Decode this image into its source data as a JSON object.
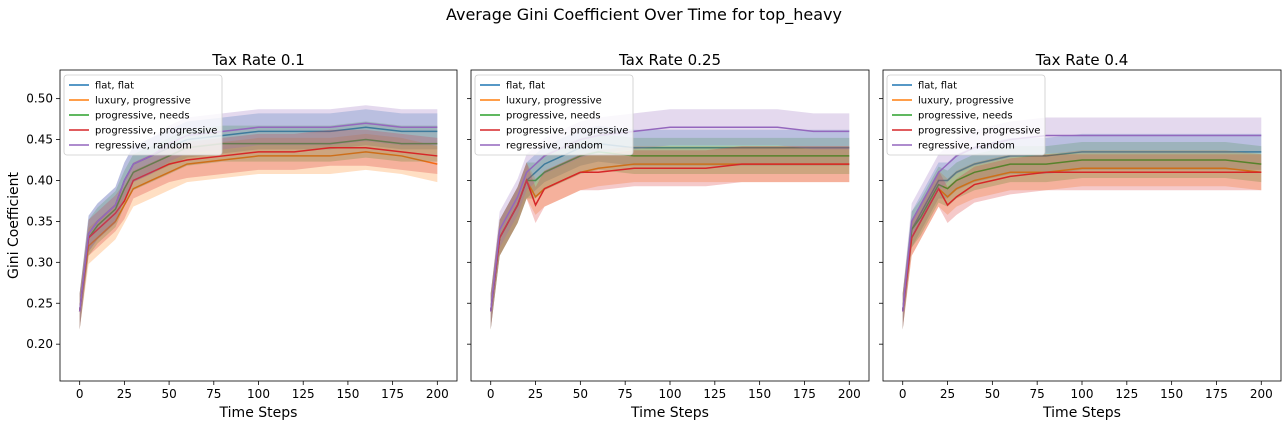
{
  "figure": {
    "suptitle": "Average Gini Coefficient Over Time for top_heavy"
  },
  "colors": {
    "flat, flat": "#1f77b4",
    "luxury, progressive": "#ff7f0e",
    "progressive, needs": "#2ca02c",
    "progressive, progressive": "#d62728",
    "regressive, random": "#9467bd"
  },
  "chart_data": [
    {
      "type": "line",
      "title": "Tax Rate 0.1",
      "xlabel": "Time Steps",
      "ylabel": "Gini Coefficient",
      "xlim": [
        -11,
        211
      ],
      "ylim": [
        0.155,
        0.535
      ],
      "xticks": [
        0,
        25,
        50,
        75,
        100,
        125,
        150,
        175,
        200
      ],
      "yticks": [
        0.2,
        0.25,
        0.3,
        0.35,
        0.4,
        0.45,
        0.5
      ],
      "grid": false,
      "legend": "upper-left",
      "shaded_band": "variability across runs",
      "x": [
        0,
        5,
        10,
        15,
        20,
        25,
        30,
        40,
        50,
        60,
        80,
        100,
        120,
        140,
        160,
        180,
        200
      ],
      "series": [
        {
          "name": "flat, flat",
          "values": [
            0.24,
            0.335,
            0.35,
            0.36,
            0.37,
            0.4,
            0.42,
            0.43,
            0.44,
            0.45,
            0.455,
            0.46,
            0.46,
            0.46,
            0.465,
            0.46,
            0.46
          ]
        },
        {
          "name": "luxury, progressive",
          "values": [
            0.24,
            0.32,
            0.33,
            0.34,
            0.35,
            0.37,
            0.39,
            0.4,
            0.41,
            0.42,
            0.425,
            0.43,
            0.43,
            0.43,
            0.435,
            0.43,
            0.42
          ]
        },
        {
          "name": "progressive, needs",
          "values": [
            0.24,
            0.33,
            0.345,
            0.355,
            0.365,
            0.39,
            0.41,
            0.42,
            0.43,
            0.44,
            0.445,
            0.445,
            0.445,
            0.445,
            0.45,
            0.445,
            0.445
          ]
        },
        {
          "name": "progressive, progressive",
          "values": [
            0.24,
            0.33,
            0.34,
            0.35,
            0.36,
            0.375,
            0.4,
            0.41,
            0.42,
            0.425,
            0.43,
            0.435,
            0.435,
            0.44,
            0.44,
            0.435,
            0.43
          ]
        },
        {
          "name": "regressive, random",
          "values": [
            0.24,
            0.335,
            0.35,
            0.36,
            0.37,
            0.4,
            0.42,
            0.43,
            0.445,
            0.455,
            0.46,
            0.465,
            0.465,
            0.465,
            0.47,
            0.465,
            0.465
          ]
        }
      ]
    },
    {
      "type": "line",
      "title": "Tax Rate 0.25",
      "xlabel": "Time Steps",
      "ylabel": "",
      "xlim": [
        -11,
        211
      ],
      "ylim": [
        0.155,
        0.535
      ],
      "xticks": [
        0,
        25,
        50,
        75,
        100,
        125,
        150,
        175,
        200
      ],
      "yticks": [
        0.2,
        0.25,
        0.3,
        0.35,
        0.4,
        0.45,
        0.5
      ],
      "grid": false,
      "legend": "upper-left",
      "shaded_band": "variability across runs",
      "x": [
        0,
        5,
        10,
        15,
        20,
        25,
        30,
        40,
        50,
        60,
        80,
        100,
        120,
        140,
        160,
        180,
        200
      ],
      "series": [
        {
          "name": "flat, flat",
          "values": [
            0.24,
            0.33,
            0.35,
            0.37,
            0.4,
            0.41,
            0.42,
            0.43,
            0.44,
            0.445,
            0.44,
            0.44,
            0.44,
            0.44,
            0.44,
            0.44,
            0.44
          ]
        },
        {
          "name": "luxury, progressive",
          "values": [
            0.24,
            0.33,
            0.35,
            0.37,
            0.4,
            0.38,
            0.39,
            0.4,
            0.41,
            0.415,
            0.42,
            0.42,
            0.42,
            0.42,
            0.42,
            0.42,
            0.42
          ]
        },
        {
          "name": "progressive, needs",
          "values": [
            0.24,
            0.33,
            0.35,
            0.37,
            0.4,
            0.4,
            0.41,
            0.42,
            0.43,
            0.435,
            0.43,
            0.43,
            0.43,
            0.43,
            0.43,
            0.43,
            0.43
          ]
        },
        {
          "name": "progressive, progressive",
          "values": [
            0.24,
            0.33,
            0.35,
            0.37,
            0.4,
            0.37,
            0.39,
            0.4,
            0.41,
            0.41,
            0.415,
            0.415,
            0.415,
            0.42,
            0.42,
            0.42,
            0.42
          ]
        },
        {
          "name": "regressive, random",
          "values": [
            0.24,
            0.34,
            0.36,
            0.38,
            0.41,
            0.42,
            0.43,
            0.44,
            0.45,
            0.455,
            0.46,
            0.465,
            0.465,
            0.465,
            0.465,
            0.46,
            0.46
          ]
        }
      ]
    },
    {
      "type": "line",
      "title": "Tax Rate 0.4",
      "xlabel": "Time Steps",
      "ylabel": "",
      "xlim": [
        -11,
        211
      ],
      "ylim": [
        0.155,
        0.535
      ],
      "xticks": [
        0,
        25,
        50,
        75,
        100,
        125,
        150,
        175,
        200
      ],
      "yticks": [
        0.2,
        0.25,
        0.3,
        0.35,
        0.4,
        0.45,
        0.5
      ],
      "grid": false,
      "legend": "upper-left",
      "shaded_band": "variability across runs",
      "x": [
        0,
        5,
        10,
        15,
        20,
        25,
        30,
        40,
        50,
        60,
        80,
        100,
        120,
        140,
        160,
        180,
        200
      ],
      "series": [
        {
          "name": "flat, flat",
          "values": [
            0.24,
            0.34,
            0.36,
            0.38,
            0.4,
            0.4,
            0.41,
            0.42,
            0.425,
            0.43,
            0.43,
            0.435,
            0.435,
            0.435,
            0.435,
            0.435,
            0.435
          ]
        },
        {
          "name": "luxury, progressive",
          "values": [
            0.24,
            0.33,
            0.35,
            0.37,
            0.39,
            0.38,
            0.39,
            0.4,
            0.405,
            0.41,
            0.41,
            0.415,
            0.415,
            0.415,
            0.415,
            0.415,
            0.41
          ]
        },
        {
          "name": "progressive, needs",
          "values": [
            0.24,
            0.34,
            0.355,
            0.375,
            0.395,
            0.39,
            0.4,
            0.41,
            0.415,
            0.42,
            0.42,
            0.425,
            0.425,
            0.425,
            0.425,
            0.425,
            0.42
          ]
        },
        {
          "name": "progressive, progressive",
          "values": [
            0.24,
            0.33,
            0.35,
            0.37,
            0.39,
            0.37,
            0.38,
            0.395,
            0.4,
            0.405,
            0.41,
            0.41,
            0.41,
            0.41,
            0.41,
            0.41,
            0.41
          ]
        },
        {
          "name": "regressive, random",
          "values": [
            0.24,
            0.35,
            0.37,
            0.39,
            0.41,
            0.42,
            0.43,
            0.44,
            0.445,
            0.45,
            0.455,
            0.455,
            0.455,
            0.455,
            0.455,
            0.455,
            0.455
          ]
        }
      ]
    }
  ]
}
